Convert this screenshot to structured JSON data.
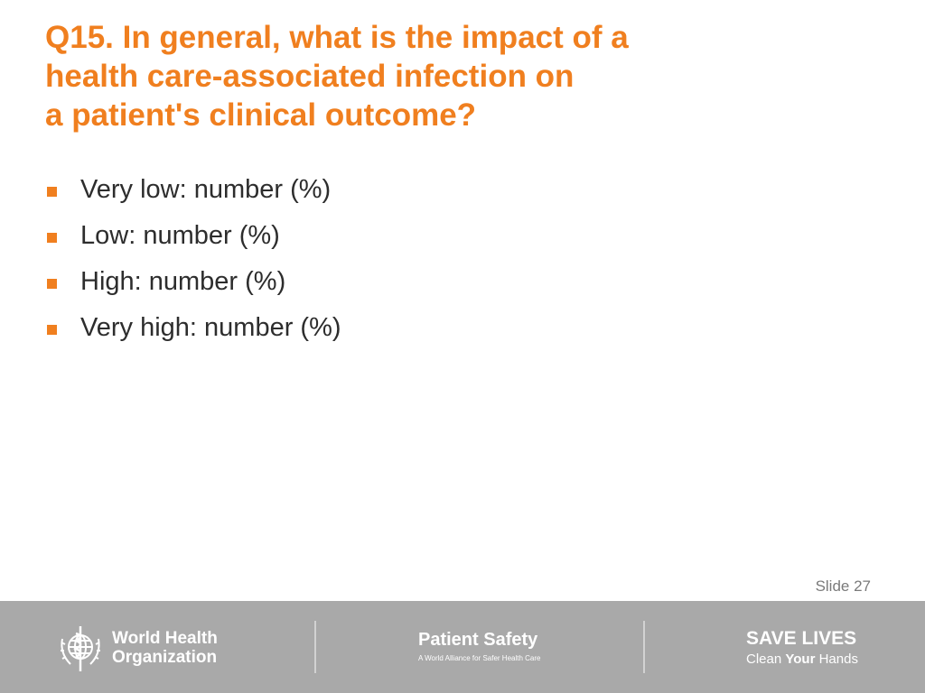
{
  "slide": {
    "title_lines": [
      "Q15. In general, what is the impact of a",
      "health care-associated infection on",
      "a patient's clinical outcome?"
    ],
    "bullets": [
      "Very low: number (%)",
      "Low: number (%)",
      "High: number (%)",
      "Very high: number (%)"
    ],
    "slide_number": "Slide 27"
  },
  "footer": {
    "who_name_line1": "World Health",
    "who_name_line2": "Organization",
    "patient_safety_title": "Patient Safety",
    "patient_safety_subtitle": "A World Alliance for Safer Health Care",
    "save_lives_title": "SAVE LIVES",
    "save_lives_sub_before": "Clean ",
    "save_lives_sub_bold": "Your",
    "save_lives_sub_after": " Hands"
  },
  "colors": {
    "title": "#f07f1f",
    "bullet_marker": "#f07f1f",
    "body_text": "#2d2d2d",
    "footer_bg": "#a9a9a9"
  },
  "icons": {
    "bullet": "square-bullet-icon",
    "who_logo": "who-emblem-icon"
  }
}
